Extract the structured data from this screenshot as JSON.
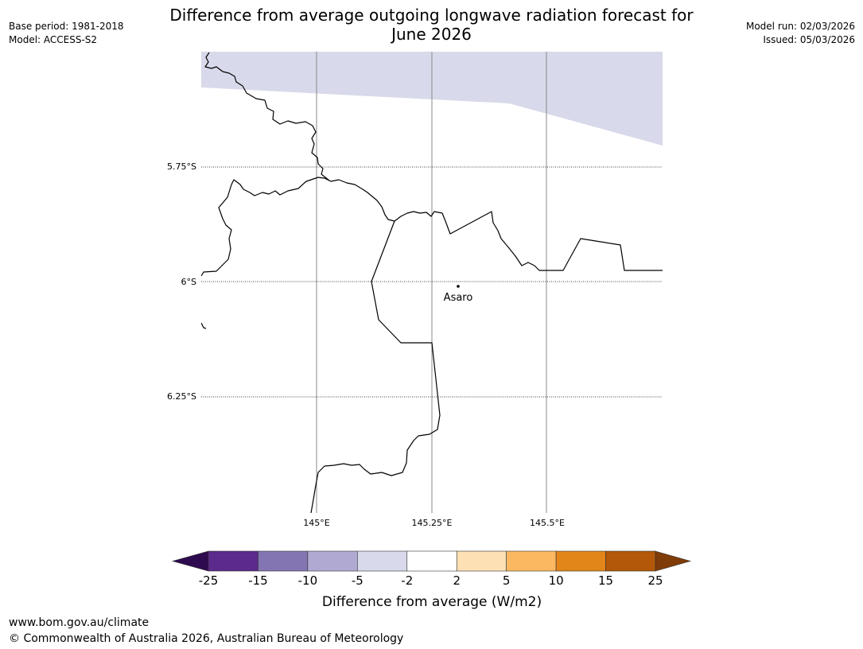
{
  "header": {
    "base_period": "Base period: 1981-2018",
    "model": "Model: ACCESS-S2",
    "title_line1": "Difference from average outgoing longwave radiation forecast for",
    "title_line2": "June 2026",
    "model_run": "Model run: 02/03/2026",
    "issued": "Issued: 05/03/2026"
  },
  "map": {
    "lat_labels": [
      "5.75°S",
      "6°S",
      "6.25°S"
    ],
    "lon_labels": [
      "145°E",
      "145.25°E",
      "145.5°E"
    ],
    "place": "Asaro",
    "anomaly_band": "-5 to -2"
  },
  "colorbar": {
    "ticks": [
      "-25",
      "-15",
      "-10",
      "-5",
      "-2",
      "2",
      "5",
      "10",
      "15",
      "25"
    ],
    "colors": [
      "#5b2a8b",
      "#8374b2",
      "#b0a9d2",
      "#d8d9ea",
      "#ffffff",
      "#fde0b4",
      "#fbb860",
      "#e2861a",
      "#b25808"
    ],
    "extend_low": "#2e0a4f",
    "extend_high": "#7f3b08",
    "label": "Difference from average (W/m2)"
  },
  "footer": {
    "url": "www.bom.gov.au/climate",
    "copyright": "© Commonwealth of Australia 2026, Australian Bureau of Meteorology"
  }
}
